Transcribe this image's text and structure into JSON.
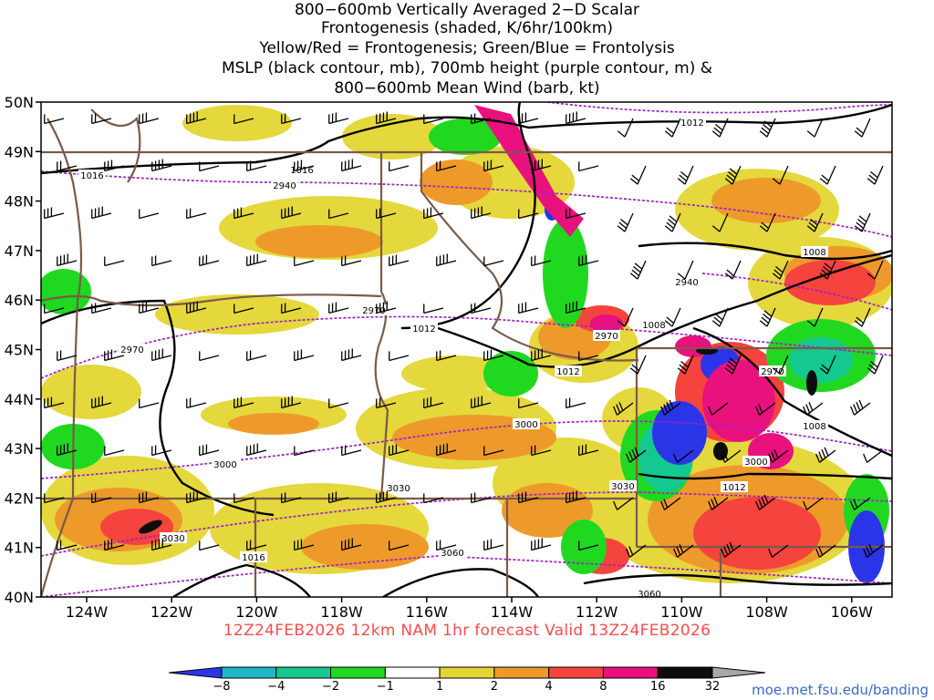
{
  "title_lines": [
    "800−600mb Vertically Averaged 2−D Scalar",
    "Frontogenesis (shaded, K/6hr/100km)",
    "Yellow/Red = Frontogenesis;  Green/Blue = Frontolysis",
    "MSLP (black contour, mb), 700mb height (purple contour, m) &",
    "800−600mb Mean Wind (barb, kt)"
  ],
  "valid_text": "12Z24FEB2026 12km NAM 1hr forecast Valid 13Z24FEB2026",
  "credit": "moe.met.fsu.edu/banding",
  "axes": {
    "lat_labels": [
      "50N",
      "49N",
      "48N",
      "47N",
      "46N",
      "45N",
      "44N",
      "43N",
      "42N",
      "41N",
      "40N"
    ],
    "lon_labels": [
      "124W",
      "122W",
      "120W",
      "118W",
      "116W",
      "114W",
      "112W",
      "110W",
      "108W",
      "106W"
    ]
  },
  "contours": {
    "mslp_labels": [
      "1016",
      "1016",
      "1012",
      "1012",
      "1012",
      "1008",
      "1008",
      "1008",
      "1016",
      "1012"
    ],
    "height_labels": [
      "2940",
      "2940",
      "2970",
      "2970",
      "2970",
      "2970",
      "3000",
      "3000",
      "3000",
      "3030",
      "3030",
      "3030",
      "3060",
      "3060"
    ]
  },
  "colorbar": {
    "labels": [
      "−8",
      "−4",
      "−2",
      "−1",
      "1",
      "2",
      "4",
      "8",
      "16",
      "32"
    ],
    "colors": [
      "#2b35e8",
      "#1eb8c8",
      "#15c890",
      "#21d821",
      "#ffffff",
      "#e3d632",
      "#ed9a2b",
      "#f5433d",
      "#e8117e",
      "#0d0d0d",
      "#a8a8a8"
    ]
  },
  "colors": {
    "frontogenesis_yellow": "#e3d632",
    "frontogenesis_orange": "#ed9a2b",
    "frontogenesis_red": "#f5433d",
    "frontogenesis_magenta": "#e8117e",
    "frontolysis_green": "#21d821",
    "frontolysis_blue": "#2b35e8",
    "mslp_contour": "#000000",
    "height_contour": "#a020c8",
    "boundary": "#7a5a48",
    "valid_text": "#ff4b4b"
  }
}
